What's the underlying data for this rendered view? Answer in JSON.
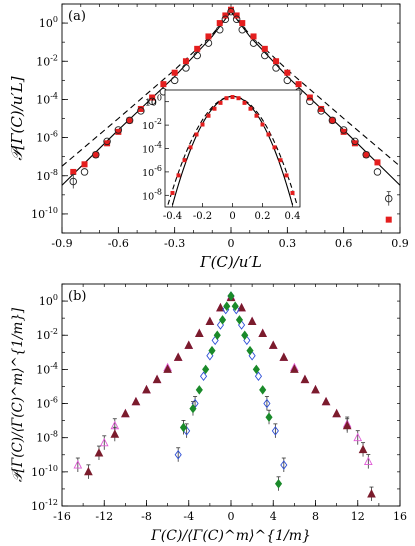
{
  "chart_data": [
    {
      "panel": "(a)",
      "type": "scatter",
      "xlabel": "Γ(C)/u′L",
      "ylabel": "𝒫[Γ(C)/u′L]",
      "xlim": [
        -0.9,
        0.9
      ],
      "ylim_log10": [
        -11,
        1
      ],
      "log_y": true,
      "xticks": [
        "-0.9",
        "-0.6",
        "-0.3",
        "0",
        "0.3",
        "0.6",
        "0.9"
      ],
      "yticks": [
        {
          "base": "10",
          "exp": "0"
        },
        {
          "base": "10",
          "exp": "-2"
        },
        {
          "base": "10",
          "exp": "-4"
        },
        {
          "base": "10",
          "exp": "-6"
        },
        {
          "base": "10",
          "exp": "-8"
        },
        {
          "base": "10",
          "exp": "-10"
        }
      ],
      "series": [
        {
          "marker": "filled-square",
          "color": "#e41e1e",
          "x": [
            -0.84,
            -0.78,
            -0.72,
            -0.66,
            -0.6,
            -0.54,
            -0.48,
            -0.42,
            -0.36,
            -0.3,
            -0.24,
            -0.18,
            -0.12,
            -0.06,
            -0.03,
            0,
            0.03,
            0.06,
            0.12,
            0.18,
            0.24,
            0.3,
            0.36,
            0.42,
            0.48,
            0.54,
            0.6,
            0.66,
            0.72,
            0.78,
            0.84
          ],
          "y": [
            -7.8,
            -7.4,
            -6.9,
            -6.3,
            -5.7,
            -5.1,
            -4.5,
            -3.9,
            -3.2,
            -2.6,
            -2.0,
            -1.35,
            -0.7,
            0.0,
            0.4,
            0.7,
            0.4,
            0.0,
            -0.7,
            -1.35,
            -2.0,
            -2.6,
            -3.2,
            -3.9,
            -4.5,
            -5.1,
            -5.7,
            -6.3,
            -6.9,
            -7.3,
            -10.3
          ]
        },
        {
          "marker": "open-circle",
          "color": "#222222",
          "x": [
            -0.84,
            -0.78,
            -0.72,
            -0.66,
            -0.6,
            -0.54,
            -0.48,
            -0.42,
            -0.36,
            -0.3,
            -0.24,
            -0.18,
            -0.12,
            -0.06,
            -0.03,
            0,
            0.03,
            0.06,
            0.12,
            0.18,
            0.24,
            0.3,
            0.36,
            0.42,
            0.48,
            0.54,
            0.6,
            0.66,
            0.72,
            0.78,
            0.84
          ],
          "y": [
            -8.3,
            -7.8,
            -6.9,
            -6.2,
            -5.6,
            -5.1,
            -4.6,
            -4.1,
            -3.6,
            -3.0,
            -2.35,
            -1.7,
            -1.05,
            -0.35,
            0.2,
            0.6,
            0.2,
            -0.35,
            -1.05,
            -1.7,
            -2.35,
            -3.0,
            -3.6,
            -4.1,
            -4.6,
            -5.1,
            -5.6,
            -6.2,
            -6.9,
            -7.8,
            -9.2
          ]
        },
        {
          "line": "solid",
          "color": "#000000",
          "x": [
            -0.9,
            -0.6,
            -0.3,
            -0.1,
            0,
            0.1,
            0.3,
            0.6,
            0.9
          ],
          "y": [
            -8.5,
            -5.6,
            -2.8,
            -0.7,
            0.6,
            -0.7,
            -2.8,
            -5.6,
            -8.5
          ]
        },
        {
          "line": "dashed",
          "color": "#000000",
          "x": [
            -0.9,
            -0.6,
            -0.3,
            -0.1,
            0,
            0.1,
            0.3,
            0.6,
            0.9
          ],
          "y": [
            -7.5,
            -5.0,
            -2.45,
            -0.6,
            0.6,
            -0.6,
            -2.45,
            -5.0,
            -7.5
          ]
        }
      ],
      "inset": {
        "xlim": [
          -0.45,
          0.45
        ],
        "ylim_log10": [
          -9,
          1
        ],
        "xticks": [
          "-0.4",
          "-0.2",
          "0",
          "0.2",
          "0.4"
        ],
        "yticks": [
          {
            "base": "10",
            "exp": "0"
          },
          {
            "base": "10",
            "exp": "-2"
          },
          {
            "base": "10",
            "exp": "-4"
          },
          {
            "base": "10",
            "exp": "-6"
          },
          {
            "base": "10",
            "exp": "-8"
          }
        ],
        "red_points_x": [
          -0.4,
          -0.36,
          -0.32,
          -0.28,
          -0.24,
          -0.2,
          -0.16,
          -0.12,
          -0.08,
          -0.04,
          0,
          0.04,
          0.08,
          0.12,
          0.16,
          0.2,
          0.24,
          0.28,
          0.32,
          0.36,
          0.4
        ],
        "red_points_y": [
          -7.8,
          -6.3,
          -5.0,
          -3.9,
          -2.8,
          -1.95,
          -1.2,
          -0.6,
          -0.1,
          0.3,
          0.4,
          0.3,
          -0.1,
          -0.6,
          -1.2,
          -1.95,
          -2.8,
          -3.9,
          -5.0,
          -6.3,
          -7.8
        ]
      }
    },
    {
      "panel": "(b)",
      "type": "scatter",
      "xlabel": "Γ(C)/⟨Γ(C)^m⟩^{1/m}",
      "ylabel": "𝒫[Γ(C)/⟨Γ(C)^m⟩^{1/m}]",
      "xlim": [
        -16,
        16
      ],
      "ylim_log10": [
        -12,
        1
      ],
      "log_y": true,
      "xticks": [
        "-16",
        "-12",
        "-8",
        "-4",
        "0",
        "4",
        "8",
        "12",
        "16"
      ],
      "yticks": [
        {
          "base": "10",
          "exp": "0"
        },
        {
          "base": "10",
          "exp": "-2"
        },
        {
          "base": "10",
          "exp": "-4"
        },
        {
          "base": "10",
          "exp": "-6"
        },
        {
          "base": "10",
          "exp": "-8"
        },
        {
          "base": "10",
          "exp": "-10"
        },
        {
          "base": "10",
          "exp": "-12"
        }
      ],
      "series": [
        {
          "marker": "open-triangle",
          "color": "#e05ad6",
          "x": [
            -14.5,
            -12.0,
            -11.0,
            -10.0,
            -9.0,
            -8.0,
            -7.0,
            -6.0,
            -5.0,
            -4.0,
            -3.0,
            -2.0,
            -1.0,
            0,
            1.0,
            2.0,
            3.0,
            4.0,
            5.0,
            6.0,
            7.0,
            8.0,
            9.0,
            10.0,
            11.0,
            12.0,
            13.0
          ],
          "y": [
            -9.6,
            -8.3,
            -7.3,
            -6.6,
            -5.9,
            -5.2,
            -4.6,
            -3.9,
            -3.3,
            -2.6,
            -1.9,
            -1.2,
            -0.4,
            0.25,
            -0.4,
            -1.2,
            -1.9,
            -2.6,
            -3.3,
            -3.9,
            -4.6,
            -5.2,
            -5.9,
            -6.6,
            -7.2,
            -8.0,
            -9.4
          ]
        },
        {
          "marker": "filled-triangle",
          "color": "#7b1c2c",
          "x": [
            -13.5,
            -12.5,
            -11.0,
            -10.0,
            -9.0,
            -8.0,
            -7.0,
            -6.0,
            -5.0,
            -4.0,
            -3.0,
            -2.0,
            -1.0,
            0,
            1.0,
            2.0,
            3.0,
            4.0,
            5.0,
            6.0,
            7.0,
            8.0,
            9.0,
            10.0,
            11.0,
            12.5,
            13.3
          ],
          "y": [
            -10.0,
            -8.9,
            -7.8,
            -6.6,
            -5.9,
            -5.2,
            -4.6,
            -4.0,
            -3.3,
            -2.6,
            -1.9,
            -1.2,
            -0.4,
            0.2,
            -0.4,
            -1.2,
            -1.9,
            -2.6,
            -3.3,
            -4.0,
            -4.6,
            -5.2,
            -5.9,
            -6.6,
            -7.3,
            -8.7,
            -11.3
          ]
        },
        {
          "marker": "open-diamond",
          "color": "#2e4fd6",
          "x": [
            -5.0,
            -4.2,
            -3.4,
            -2.6,
            -2.0,
            -1.5,
            -1.0,
            -0.5,
            0,
            0.5,
            1.0,
            1.5,
            2.0,
            2.6,
            3.4,
            4.2,
            5.0
          ],
          "y": [
            -9.0,
            -7.6,
            -6.0,
            -4.4,
            -3.2,
            -2.3,
            -1.4,
            -0.5,
            0.3,
            -0.5,
            -1.4,
            -2.3,
            -3.2,
            -4.4,
            -6.0,
            -7.6,
            -9.6
          ]
        },
        {
          "marker": "filled-diamond",
          "color": "#1a8a2a",
          "x": [
            -4.5,
            -3.6,
            -3.0,
            -2.4,
            -1.8,
            -1.3,
            -0.8,
            -0.4,
            0,
            0.4,
            0.8,
            1.3,
            1.8,
            2.4,
            3.0,
            3.6,
            4.5
          ],
          "y": [
            -7.4,
            -6.3,
            -5.2,
            -4.0,
            -2.9,
            -2.0,
            -1.1,
            -0.3,
            0.3,
            -0.3,
            -1.1,
            -2.0,
            -2.9,
            -4.0,
            -5.2,
            -6.8,
            -10.7
          ]
        }
      ]
    }
  ]
}
